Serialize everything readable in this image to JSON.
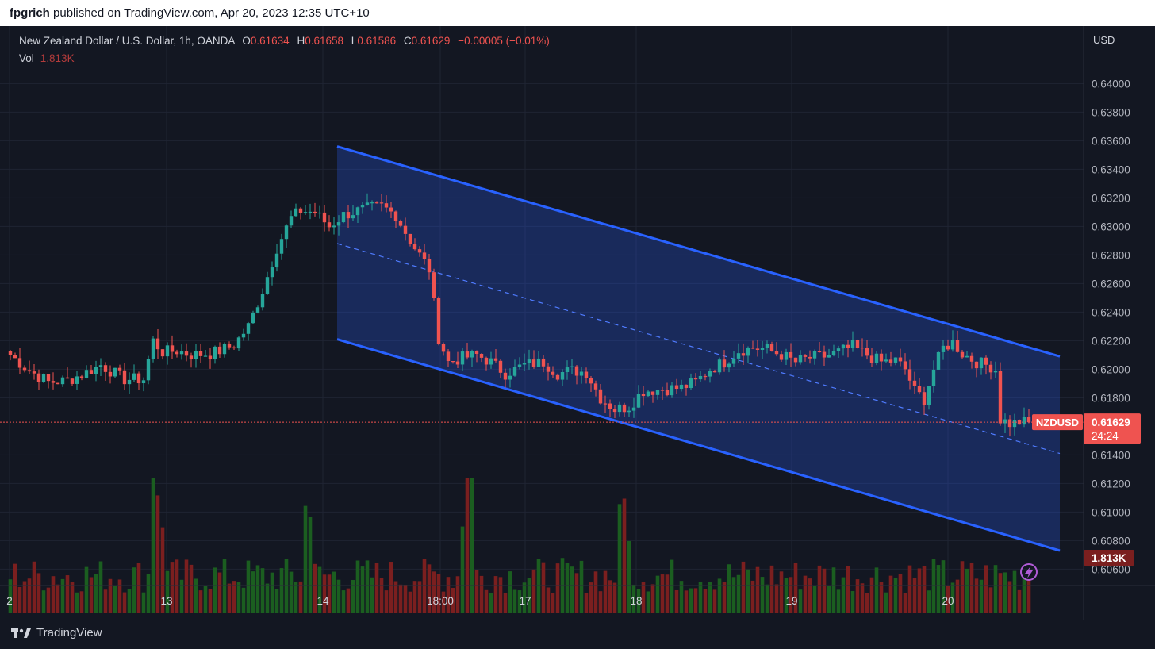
{
  "header": {
    "publisher": "fpgrich",
    "published_text": "published on TradingView.com, Apr 20, 2023 12:35 UTC+10"
  },
  "legend": {
    "symbol": "New Zealand Dollar / U.S. Dollar, 1h, OANDA",
    "o_label": "O",
    "open": "0.61634",
    "h_label": "H",
    "high": "0.61658",
    "l_label": "L",
    "low": "0.61586",
    "c_label": "C",
    "close": "0.61629",
    "change": "−0.00005 (−0.01%)",
    "vol_label": "Vol",
    "vol_value": "1.813K"
  },
  "currency": "USD",
  "footer": {
    "brand": "TradingView"
  },
  "colors": {
    "bg": "#131722",
    "up": "#26a69a",
    "down": "#ef5350",
    "channel_line": "#2962ff",
    "channel_fill": "rgba(41,98,255,0.26)",
    "vol_up": "#1b5e20",
    "vol_down": "#7b1f1f"
  },
  "chart_data": {
    "type": "candlestick",
    "timeframe": "1h",
    "x_tick_labels": [
      "2",
      "13",
      "14",
      "18:00",
      "17",
      "18",
      "19",
      "20"
    ],
    "y_tick_labels": [
      "0.64000",
      "0.63800",
      "0.63600",
      "0.63400",
      "0.63200",
      "0.63000",
      "0.62800",
      "0.62600",
      "0.62400",
      "0.62200",
      "0.62000",
      "0.61800",
      "0.61400",
      "0.61200",
      "0.61000",
      "0.60800",
      "0.60600"
    ],
    "ylim": [
      0.6053,
      0.6418
    ],
    "last_price": {
      "symbol": "NZDUSD",
      "price": "0.61629",
      "countdown": "24:24",
      "value": 0.61629
    },
    "volume_label": "1.813K",
    "channel": {
      "upper_start": [
        0.6356,
        0
      ],
      "upper_end": [
        0.6209,
        1
      ],
      "lower_start": [
        0.6221,
        0
      ],
      "lower_end": [
        0.6073,
        1
      ],
      "mid_start": [
        0.6288,
        0
      ],
      "mid_end": [
        0.6141,
        1
      ]
    },
    "close_path_points": [
      [
        0,
        0.621
      ],
      [
        4,
        0.6199
      ],
      [
        8,
        0.6191
      ],
      [
        12,
        0.6192
      ],
      [
        16,
        0.6198
      ],
      [
        19,
        0.6203
      ],
      [
        24,
        0.6193
      ],
      [
        28,
        0.6193
      ],
      [
        30,
        0.622
      ],
      [
        32,
        0.6212
      ],
      [
        35,
        0.6213
      ],
      [
        38,
        0.621
      ],
      [
        42,
        0.6211
      ],
      [
        44,
        0.6213
      ],
      [
        47,
        0.6217
      ],
      [
        50,
        0.623
      ],
      [
        53,
        0.6255
      ],
      [
        56,
        0.6285
      ],
      [
        59,
        0.6306
      ],
      [
        61,
        0.6311
      ],
      [
        64,
        0.631
      ],
      [
        67,
        0.63
      ],
      [
        70,
        0.6308
      ],
      [
        74,
        0.6312
      ],
      [
        78,
        0.6314
      ],
      [
        81,
        0.6308
      ],
      [
        84,
        0.629
      ],
      [
        86,
        0.628
      ],
      [
        88,
        0.627
      ],
      [
        90,
        0.6222
      ],
      [
        92,
        0.6205
      ],
      [
        95,
        0.6208
      ],
      [
        98,
        0.621
      ],
      [
        101,
        0.6205
      ],
      [
        104,
        0.6197
      ],
      [
        108,
        0.6203
      ],
      [
        112,
        0.6205
      ],
      [
        115,
        0.6197
      ],
      [
        118,
        0.6199
      ],
      [
        121,
        0.6198
      ],
      [
        124,
        0.618
      ],
      [
        127,
        0.6172
      ],
      [
        130,
        0.6174
      ],
      [
        133,
        0.6185
      ],
      [
        137,
        0.6186
      ],
      [
        141,
        0.6187
      ],
      [
        144,
        0.6191
      ],
      [
        147,
        0.62
      ],
      [
        150,
        0.6205
      ],
      [
        153,
        0.6213
      ],
      [
        156,
        0.6215
      ],
      [
        159,
        0.6214
      ],
      [
        162,
        0.621
      ],
      [
        165,
        0.6205
      ],
      [
        168,
        0.6208
      ],
      [
        171,
        0.6209
      ],
      [
        174,
        0.6212
      ],
      [
        177,
        0.6216
      ],
      [
        180,
        0.621
      ],
      [
        183,
        0.6205
      ],
      [
        186,
        0.6206
      ],
      [
        188,
        0.62
      ],
      [
        190,
        0.6185
      ],
      [
        192,
        0.6179
      ],
      [
        194,
        0.62
      ],
      [
        196,
        0.6215
      ],
      [
        198,
        0.6219
      ],
      [
        200,
        0.6211
      ],
      [
        203,
        0.6205
      ],
      [
        206,
        0.6202
      ],
      [
        207,
        0.62
      ],
      [
        208,
        0.6165
      ],
      [
        210,
        0.6162
      ],
      [
        212,
        0.6163
      ],
      [
        213,
        0.6163
      ]
    ]
  }
}
